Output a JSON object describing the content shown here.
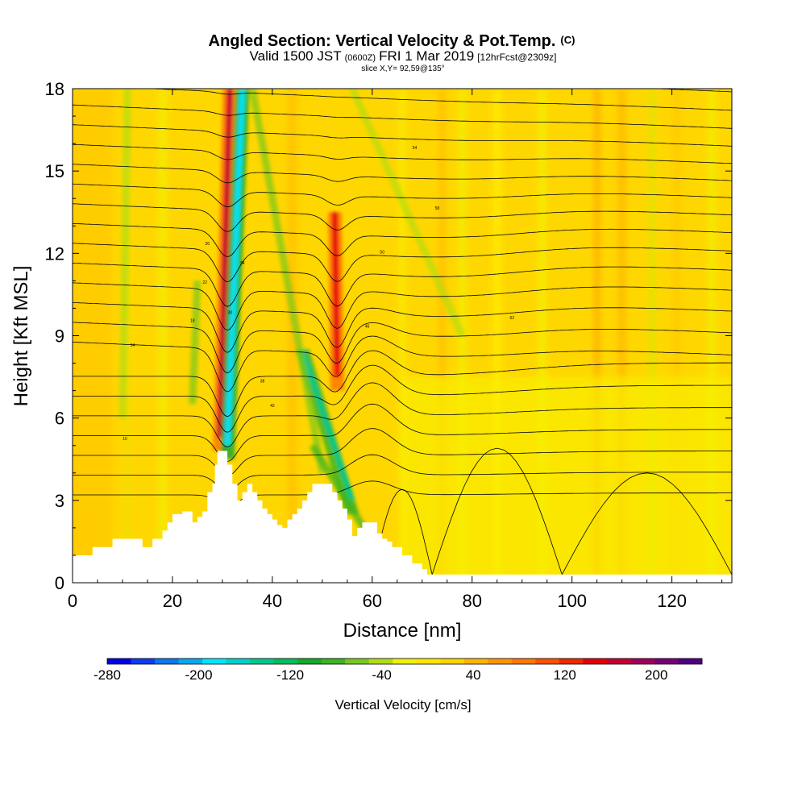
{
  "title": {
    "main": "Angled Section: Vertical Velocity & Pot.Temp.",
    "main_suffix": "(C)",
    "valid_prefix": "Valid 1500 JST",
    "valid_zulu": "(0600Z)",
    "valid_date": "FRI 1 Mar 2019",
    "valid_fcst": "[12hrFcst@2309z]",
    "slice": "slice X,Y= 92,59@135°"
  },
  "chart_data": {
    "type": "heatmap",
    "xlabel": "Distance [nm]",
    "ylabel": "Height [Kft MSL]",
    "xlim": [
      0,
      132
    ],
    "ylim": [
      0,
      18
    ],
    "x_ticks": [
      0,
      20,
      40,
      60,
      80,
      100,
      120
    ],
    "y_ticks": [
      0,
      3,
      6,
      9,
      12,
      15,
      18
    ],
    "colorbar": {
      "title": "Vertical Velocity [cm/s]",
      "range": [
        -280,
        240
      ],
      "tick_values": [
        -280,
        -200,
        -120,
        -40,
        40,
        120,
        200
      ],
      "tick_labels": [
        "-280",
        "-200",
        "-120",
        "-40",
        "40",
        "120",
        "200"
      ],
      "colors": [
        "#0000e6",
        "#0a3ef0",
        "#0a78f0",
        "#06aaf0",
        "#00e6ff",
        "#00d2c8",
        "#00c88c",
        "#00be5a",
        "#14aa28",
        "#3cb41e",
        "#78c81e",
        "#b4dc14",
        "#f0f00a",
        "#ffe600",
        "#ffd200",
        "#ffb400",
        "#ff9600",
        "#ff7800",
        "#ff5000",
        "#f02800",
        "#e6000a",
        "#c80032",
        "#a0005a",
        "#780078",
        "#500082"
      ]
    },
    "features": [
      {
        "kind": "updraft",
        "label": "strong updraft",
        "x_bottom": 29.5,
        "x_top": 31.5,
        "z_bottom": 4.8,
        "z_top": 18,
        "peak_cm_s": 170
      },
      {
        "kind": "downdraft",
        "label": "strong downdraft",
        "x_bottom": 31.0,
        "x_top": 34.0,
        "z_bottom": 4.5,
        "z_top": 18,
        "peak_cm_s": -190
      },
      {
        "kind": "updraft",
        "label": "updraft over ridge",
        "x_bottom": 53.0,
        "x_top": 52.5,
        "z_bottom": 7.0,
        "z_top": 13.5,
        "peak_cm_s": 150
      },
      {
        "kind": "downdraft",
        "label": "lee downdraft",
        "x_bottom": 56.0,
        "x_top": 46.0,
        "z_bottom": 2.5,
        "z_top": 8.5,
        "peak_cm_s": -150
      }
    ],
    "contour_labels": [
      "10",
      "14",
      "18",
      "22",
      "26",
      "30",
      "34",
      "38",
      "42",
      "46",
      "50",
      "54",
      "58",
      "62"
    ],
    "terrain_profile": {
      "x": [
        0,
        4,
        8,
        12,
        14,
        16,
        18,
        19,
        20,
        22,
        24,
        25,
        26,
        27,
        28,
        28.5,
        29,
        30,
        31,
        32,
        33,
        34,
        35,
        36,
        37,
        38,
        39,
        40,
        41,
        42,
        43,
        44,
        45,
        46,
        47,
        48,
        49,
        50,
        51,
        52,
        53,
        54,
        55,
        56,
        57,
        58,
        59,
        60,
        61,
        62,
        63,
        64,
        65,
        66,
        68,
        70,
        71,
        72,
        74,
        80,
        90,
        100,
        110,
        120,
        132
      ],
      "z": [
        1.0,
        1.3,
        1.6,
        1.6,
        1.3,
        1.6,
        1.9,
        2.2,
        2.5,
        2.6,
        2.2,
        2.4,
        2.6,
        3.3,
        3.6,
        4.3,
        4.8,
        4.8,
        4.3,
        3.6,
        3.0,
        3.3,
        3.6,
        3.3,
        3.0,
        2.7,
        2.5,
        2.3,
        2.1,
        2.0,
        2.3,
        2.5,
        2.7,
        3.0,
        3.3,
        3.6,
        3.6,
        3.6,
        3.6,
        3.3,
        3.0,
        2.7,
        2.3,
        1.7,
        2.0,
        2.2,
        2.2,
        2.2,
        1.8,
        1.6,
        1.5,
        1.3,
        1.3,
        1.0,
        0.7,
        0.5,
        0.3,
        0.3,
        0.3,
        0.3,
        0.3,
        0.3,
        0.3,
        0.3,
        0.3
      ]
    }
  }
}
